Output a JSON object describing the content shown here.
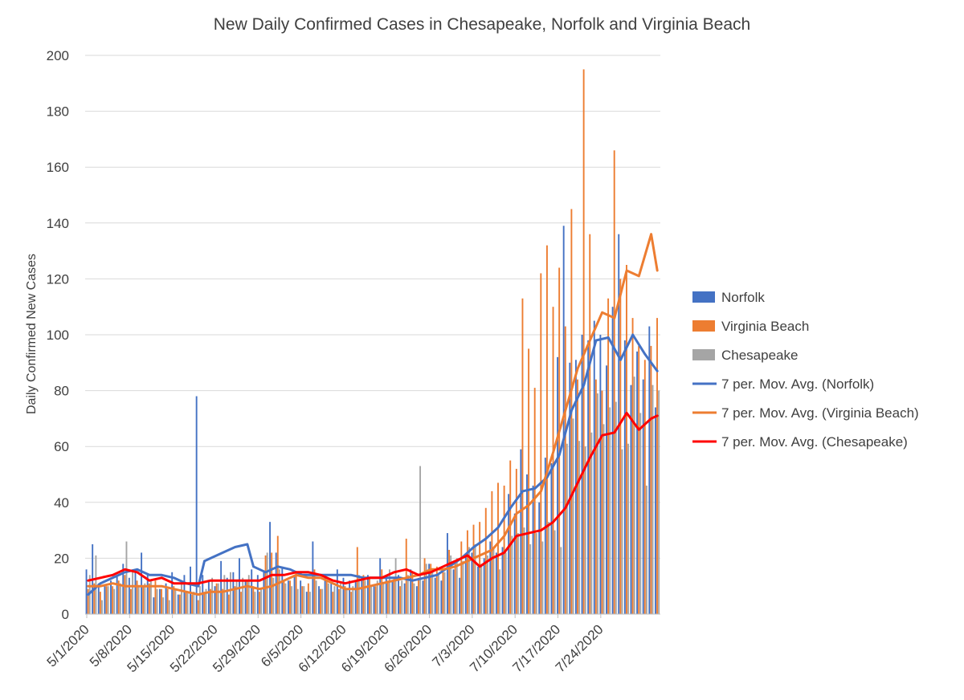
{
  "chart_data": {
    "type": "bar",
    "title": "New Daily Confirmed Cases in Chesapeake, Norfolk and Virginia Beach",
    "xlabel": "",
    "ylabel": "Daily Confirmed New Cases",
    "ylim": [
      0,
      200
    ],
    "yticks": [
      0,
      20,
      40,
      60,
      80,
      100,
      120,
      140,
      160,
      180,
      200
    ],
    "xtick_labels": [
      "5/1/2020",
      "5/8/2020",
      "5/15/2020",
      "5/22/2020",
      "5/29/2020",
      "6/5/2020",
      "6/12/2020",
      "6/19/2020",
      "6/26/2020",
      "7/3/2020",
      "7/10/2020",
      "7/17/2020",
      "7/24/2020"
    ],
    "x_start": "5/1/2020",
    "x_end": "7/25/2020",
    "grid": "horizontal",
    "legend_position": "right",
    "series": [
      {
        "name": "Norfolk",
        "kind": "bar",
        "color": "#4472C4",
        "values": [
          16,
          25,
          11,
          10,
          12,
          14,
          18,
          13,
          15,
          22,
          14,
          6,
          9,
          11,
          15,
          7,
          14,
          17,
          78,
          14,
          12,
          10,
          19,
          13,
          15,
          20,
          12,
          16,
          14,
          15,
          33,
          22,
          17,
          12,
          14,
          12,
          8,
          26,
          10,
          14,
          11,
          16,
          13,
          12,
          12,
          12,
          14,
          10,
          20,
          13,
          12,
          14,
          11,
          16,
          10,
          12,
          18,
          13,
          12,
          29,
          16,
          13,
          21,
          22,
          17,
          20,
          26,
          22,
          24,
          43,
          36,
          59,
          50,
          46,
          40,
          56,
          54,
          92,
          139,
          90,
          91,
          100,
          98,
          105,
          100,
          89,
          110,
          136,
          98,
          82,
          94,
          84,
          103,
          74
        ]
      },
      {
        "name": "Virginia Beach",
        "kind": "bar",
        "color": "#ED7D31",
        "values": [
          9,
          11,
          8,
          10,
          10,
          12,
          14,
          9,
          12,
          10,
          11,
          12,
          9,
          9,
          10,
          7,
          8,
          7,
          5,
          8,
          9,
          11,
          9,
          7,
          10,
          8,
          12,
          10,
          8,
          21,
          22,
          28,
          12,
          12,
          15,
          10,
          11,
          16,
          9,
          12,
          8,
          9,
          10,
          8,
          24,
          14,
          13,
          10,
          16,
          12,
          13,
          10,
          27,
          15,
          13,
          20,
          18,
          17,
          15,
          23,
          19,
          26,
          30,
          32,
          33,
          38,
          44,
          47,
          46,
          55,
          52,
          113,
          95,
          81,
          122,
          132,
          110,
          124,
          103,
          145,
          84,
          195,
          136,
          84,
          80,
          113,
          166,
          120,
          125,
          106,
          96,
          91,
          96,
          106
        ]
      },
      {
        "name": "Chesapeake",
        "kind": "bar",
        "color": "#A5A5A5",
        "values": [
          14,
          21,
          5,
          10,
          9,
          11,
          26,
          15,
          10,
          11,
          12,
          9,
          6,
          5,
          9,
          12,
          8,
          8,
          10,
          9,
          13,
          11,
          14,
          15,
          12,
          13,
          14,
          8,
          9,
          22,
          13,
          16,
          11,
          10,
          9,
          10,
          8,
          12,
          9,
          11,
          10,
          11,
          9,
          10,
          14,
          12,
          10,
          12,
          11,
          16,
          20,
          12,
          14,
          11,
          53,
          18,
          16,
          14,
          15,
          21,
          20,
          19,
          24,
          25,
          18,
          21,
          24,
          16,
          22,
          28,
          29,
          31,
          25,
          29,
          26,
          33,
          30,
          24,
          61,
          70,
          62,
          60,
          65,
          79,
          68,
          74,
          76,
          59,
          61,
          85,
          72,
          46,
          82,
          80
        ]
      },
      {
        "name": "7 per. Mov. Avg. (Norfolk)",
        "kind": "line",
        "color": "#4472C4",
        "x_index": [
          0,
          2,
          4,
          6,
          8,
          10,
          12,
          14,
          16,
          18,
          19,
          20,
          22,
          24,
          26,
          27,
          29,
          31,
          33,
          35,
          37,
          39,
          41,
          43,
          45,
          47,
          49,
          51,
          53,
          55,
          57,
          59,
          61,
          63,
          65,
          67,
          69,
          71,
          73,
          75,
          77,
          79,
          81,
          83,
          85,
          87,
          89,
          91,
          93
        ],
        "values": [
          7,
          11,
          13,
          15,
          16,
          14,
          14,
          13,
          11,
          10,
          19,
          20,
          22,
          24,
          25,
          17,
          15,
          17,
          16,
          14,
          14,
          14,
          14,
          14,
          13,
          13,
          13,
          13,
          12,
          13,
          14,
          17,
          20,
          24,
          27,
          31,
          38,
          44,
          45,
          49,
          57,
          73,
          82,
          98,
          99,
          91,
          100,
          93,
          87
        ]
      },
      {
        "name": "7 per. Mov. Avg. (Virginia Beach)",
        "kind": "line",
        "color": "#ED7D31",
        "x_index": [
          0,
          2,
          4,
          6,
          8,
          10,
          12,
          14,
          16,
          18,
          20,
          22,
          24,
          26,
          28,
          30,
          32,
          34,
          36,
          38,
          40,
          42,
          44,
          46,
          48,
          50,
          52,
          54,
          56,
          58,
          60,
          62,
          64,
          66,
          68,
          70,
          72,
          74,
          76,
          78,
          80,
          82,
          84,
          86,
          88,
          90,
          92,
          93
        ],
        "values": [
          10,
          10,
          11,
          10,
          10,
          10,
          10,
          9,
          8,
          7,
          8,
          8,
          9,
          10,
          9,
          10,
          12,
          14,
          13,
          13,
          11,
          9,
          9,
          10,
          11,
          12,
          13,
          14,
          16,
          16,
          17,
          19,
          21,
          23,
          28,
          36,
          39,
          44,
          58,
          73,
          88,
          98,
          108,
          106,
          123,
          121,
          136,
          123
        ]
      },
      {
        "name": "7 per. Mov. Avg. (Chesapeake)",
        "kind": "line",
        "color": "#FF0000",
        "x_index": [
          0,
          2,
          4,
          6,
          8,
          10,
          12,
          14,
          16,
          18,
          20,
          22,
          24,
          26,
          28,
          30,
          32,
          34,
          36,
          38,
          40,
          42,
          44,
          46,
          48,
          50,
          52,
          54,
          56,
          58,
          60,
          62,
          64,
          66,
          68,
          70,
          72,
          74,
          76,
          78,
          80,
          82,
          84,
          86,
          88,
          90,
          92,
          93
        ],
        "values": [
          12,
          13,
          14,
          16,
          15,
          12,
          13,
          11,
          11,
          11,
          12,
          12,
          12,
          12,
          12,
          14,
          14,
          15,
          15,
          14,
          12,
          11,
          12,
          13,
          13,
          15,
          16,
          14,
          15,
          17,
          19,
          21,
          17,
          20,
          22,
          28,
          29,
          30,
          33,
          38,
          47,
          56,
          64,
          65,
          72,
          66,
          70,
          71
        ]
      }
    ]
  }
}
